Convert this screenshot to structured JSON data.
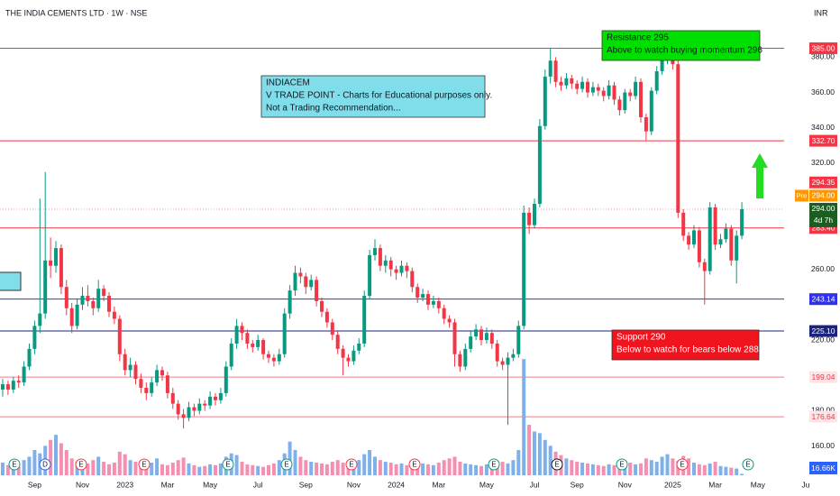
{
  "header": {
    "title": "THE INDIA CEMENTS LTD · 1W · NSE",
    "currency": "INR"
  },
  "chart_data": {
    "type": "candlestick",
    "categories": [
      null,
      null,
      null,
      null,
      null,
      null,
      "Sep",
      null,
      null,
      null,
      null,
      null,
      null,
      null,
      null,
      "Nov",
      null,
      null,
      null,
      null,
      null,
      null,
      null,
      "2023",
      null,
      null,
      null,
      null,
      null,
      null,
      null,
      "Mar",
      null,
      null,
      null,
      null,
      null,
      null,
      null,
      "May",
      null,
      null,
      null,
      null,
      null,
      null,
      null,
      null,
      "Jul",
      null,
      null,
      null,
      null,
      null,
      null,
      null,
      null,
      "Sep",
      null,
      null,
      null,
      null,
      null,
      null,
      null,
      null,
      "Nov",
      null,
      null,
      null,
      null,
      null,
      null,
      null,
      "2024",
      null,
      null,
      null,
      null,
      null,
      null,
      null,
      "Mar",
      null,
      null,
      null,
      null,
      null,
      null,
      null,
      null,
      "May",
      null,
      null,
      null,
      null,
      null,
      null,
      null,
      null,
      "Jul",
      null,
      null,
      null,
      null,
      null,
      null,
      null,
      "Sep",
      null,
      null,
      null,
      null,
      null,
      null,
      null,
      null,
      "Nov",
      null,
      null,
      null,
      null,
      null,
      null,
      null,
      null,
      "2025",
      null,
      null,
      null,
      null,
      null,
      null,
      null,
      "Mar",
      null,
      null,
      null,
      null,
      null,
      null,
      null,
      "May",
      null,
      null,
      null,
      null,
      null,
      null,
      null,
      null,
      "Ju"
    ],
    "ohlc": [
      [
        192,
        198,
        188,
        195
      ],
      [
        195,
        197,
        189,
        192
      ],
      [
        192,
        199,
        190,
        197
      ],
      [
        197,
        200,
        193,
        196
      ],
      [
        196,
        208,
        194,
        205
      ],
      [
        205,
        218,
        203,
        215
      ],
      [
        215,
        231,
        212,
        228
      ],
      [
        228,
        300,
        224,
        235
      ],
      [
        235,
        315,
        232,
        265
      ],
      [
        265,
        278,
        255,
        262
      ],
      [
        262,
        276,
        258,
        272
      ],
      [
        272,
        274,
        246,
        250
      ],
      [
        250,
        254,
        234,
        238
      ],
      [
        238,
        241,
        224,
        228
      ],
      [
        228,
        243,
        226,
        240
      ],
      [
        240,
        250,
        237,
        245
      ],
      [
        245,
        251,
        239,
        242
      ],
      [
        242,
        244,
        234,
        238
      ],
      [
        238,
        254,
        236,
        249
      ],
      [
        249,
        251,
        242,
        245
      ],
      [
        245,
        247,
        233,
        236
      ],
      [
        236,
        239,
        229,
        232
      ],
      [
        232,
        234,
        208,
        212
      ],
      [
        212,
        215,
        200,
        203
      ],
      [
        203,
        210,
        199,
        206
      ],
      [
        206,
        208,
        195,
        198
      ],
      [
        198,
        201,
        190,
        193
      ],
      [
        193,
        196,
        186,
        190
      ],
      [
        190,
        199,
        188,
        196
      ],
      [
        196,
        206,
        194,
        203
      ],
      [
        203,
        205,
        197,
        200
      ],
      [
        200,
        202,
        187,
        190
      ],
      [
        190,
        193,
        181,
        184
      ],
      [
        184,
        186,
        175,
        178
      ],
      [
        178,
        181,
        170,
        176
      ],
      [
        176,
        185,
        174,
        182
      ],
      [
        182,
        184,
        177,
        180
      ],
      [
        180,
        187,
        178,
        184
      ],
      [
        184,
        186,
        180,
        183
      ],
      [
        183,
        191,
        181,
        188
      ],
      [
        188,
        190,
        183,
        186
      ],
      [
        186,
        193,
        184,
        190
      ],
      [
        190,
        208,
        188,
        205
      ],
      [
        205,
        221,
        203,
        218
      ],
      [
        218,
        232,
        215,
        228
      ],
      [
        228,
        230,
        220,
        224
      ],
      [
        224,
        226,
        215,
        218
      ],
      [
        218,
        220,
        213,
        216
      ],
      [
        216,
        223,
        214,
        220
      ],
      [
        220,
        221,
        209,
        212
      ],
      [
        212,
        214,
        207,
        210
      ],
      [
        210,
        212,
        205,
        208
      ],
      [
        208,
        215,
        206,
        212
      ],
      [
        212,
        238,
        210,
        235
      ],
      [
        235,
        251,
        232,
        248
      ],
      [
        248,
        262,
        245,
        258
      ],
      [
        258,
        261,
        252,
        256
      ],
      [
        256,
        258,
        246,
        250
      ],
      [
        250,
        257,
        248,
        254
      ],
      [
        254,
        256,
        239,
        242
      ],
      [
        242,
        244,
        233,
        236
      ],
      [
        236,
        238,
        227,
        230
      ],
      [
        230,
        232,
        220,
        223
      ],
      [
        223,
        225,
        212,
        215
      ],
      [
        215,
        217,
        200,
        210
      ],
      [
        210,
        212,
        205,
        208
      ],
      [
        208,
        217,
        206,
        214
      ],
      [
        214,
        221,
        212,
        218
      ],
      [
        218,
        248,
        216,
        245
      ],
      [
        245,
        271,
        243,
        268
      ],
      [
        268,
        277,
        265,
        272
      ],
      [
        272,
        274,
        259,
        262
      ],
      [
        262,
        268,
        258,
        265
      ],
      [
        265,
        267,
        256,
        260
      ],
      [
        260,
        262,
        254,
        258
      ],
      [
        258,
        265,
        256,
        262
      ],
      [
        262,
        264,
        255,
        259
      ],
      [
        259,
        261,
        247,
        250
      ],
      [
        250,
        252,
        241,
        244
      ],
      [
        244,
        249,
        242,
        246
      ],
      [
        246,
        248,
        237,
        240
      ],
      [
        240,
        245,
        238,
        242
      ],
      [
        242,
        244,
        235,
        238
      ],
      [
        238,
        240,
        229,
        232
      ],
      [
        232,
        234,
        227,
        230
      ],
      [
        230,
        232,
        205,
        212
      ],
      [
        212,
        214,
        202,
        205
      ],
      [
        205,
        218,
        203,
        215
      ],
      [
        215,
        225,
        213,
        222
      ],
      [
        222,
        229,
        220,
        226
      ],
      [
        226,
        228,
        217,
        220
      ],
      [
        220,
        227,
        218,
        224
      ],
      [
        224,
        226,
        215,
        218
      ],
      [
        218,
        220,
        205,
        208
      ],
      [
        208,
        210,
        203,
        206
      ],
      [
        206,
        213,
        172,
        210
      ],
      [
        210,
        215,
        208,
        212
      ],
      [
        212,
        231,
        210,
        228
      ],
      [
        228,
        296,
        226,
        292
      ],
      [
        292,
        295,
        280,
        285
      ],
      [
        285,
        300,
        283,
        297
      ],
      [
        297,
        345,
        295,
        341
      ],
      [
        341,
        373,
        339,
        369
      ],
      [
        369,
        385,
        365,
        378
      ],
      [
        378,
        380,
        363,
        366
      ],
      [
        366,
        369,
        361,
        364
      ],
      [
        364,
        371,
        362,
        368
      ],
      [
        368,
        370,
        362,
        365
      ],
      [
        365,
        367,
        359,
        362
      ],
      [
        362,
        369,
        360,
        366
      ],
      [
        366,
        368,
        357,
        360
      ],
      [
        360,
        366,
        358,
        363
      ],
      [
        363,
        365,
        358,
        361
      ],
      [
        361,
        363,
        355,
        358
      ],
      [
        358,
        367,
        356,
        364
      ],
      [
        364,
        366,
        353,
        356
      ],
      [
        356,
        358,
        347,
        350
      ],
      [
        350,
        362,
        348,
        360
      ],
      [
        360,
        362,
        355,
        358
      ],
      [
        358,
        369,
        356,
        366
      ],
      [
        366,
        368,
        343,
        346
      ],
      [
        346,
        348,
        333,
        338
      ],
      [
        338,
        363,
        336,
        361
      ],
      [
        361,
        375,
        359,
        372
      ],
      [
        372,
        382,
        370,
        379
      ],
      [
        379,
        386,
        376,
        383
      ],
      [
        383,
        385,
        373,
        376
      ],
      [
        376,
        378,
        289,
        292
      ],
      [
        292,
        294,
        276,
        279
      ],
      [
        279,
        281,
        271,
        274
      ],
      [
        274,
        285,
        272,
        282
      ],
      [
        282,
        284,
        261,
        264
      ],
      [
        264,
        266,
        240,
        259
      ],
      [
        259,
        298,
        257,
        295
      ],
      [
        295,
        297,
        271,
        274
      ],
      [
        274,
        280,
        272,
        277
      ],
      [
        277,
        286,
        275,
        283
      ],
      [
        283,
        285,
        262,
        265
      ],
      [
        265,
        282,
        252,
        279
      ],
      [
        279,
        298,
        277,
        294
      ]
    ],
    "up_color": "#089981",
    "down_color": "#f23645",
    "ylim": [
      142,
      397
    ],
    "yticks": [
      {
        "value": 160,
        "label": "160.00"
      },
      {
        "value": 180,
        "label": "180.00"
      },
      {
        "value": 220,
        "label": "220.00"
      },
      {
        "value": 260,
        "label": "260.00"
      },
      {
        "value": 320,
        "label": "320.00"
      },
      {
        "value": 340,
        "label": "340.00"
      },
      {
        "value": 360,
        "label": "360.00"
      },
      {
        "value": 380,
        "label": "380.00"
      }
    ],
    "volume": {
      "values": [
        150,
        120,
        140,
        100,
        180,
        220,
        300,
        260,
        350,
        420,
        480,
        380,
        300,
        200,
        160,
        120,
        140,
        180,
        220,
        160,
        130,
        150,
        280,
        250,
        180,
        160,
        140,
        120,
        150,
        200,
        130,
        120,
        150,
        180,
        210,
        140,
        120,
        100,
        110,
        130,
        120,
        140,
        220,
        260,
        240,
        160,
        130,
        120,
        110,
        100,
        120,
        140,
        180,
        260,
        400,
        300,
        220,
        180,
        160,
        150,
        140,
        130,
        160,
        180,
        150,
        120,
        140,
        180,
        250,
        300,
        220,
        180,
        160,
        150,
        130,
        140,
        120,
        150,
        160,
        140,
        130,
        120,
        150,
        180,
        200,
        220,
        160,
        140,
        130,
        120,
        110,
        130,
        150,
        170,
        160,
        140,
        180,
        300,
        1380,
        600,
        520,
        500,
        420,
        350,
        280,
        240,
        200,
        180,
        160,
        150,
        140,
        130,
        120,
        110,
        130,
        120,
        140,
        160,
        150,
        130,
        140,
        200,
        180,
        160,
        220,
        250,
        200,
        170,
        230,
        200,
        150,
        130,
        120,
        140,
        160,
        110,
        100,
        90,
        80,
        16.66
      ],
      "value_labels": {
        "139": "16.66K"
      },
      "ylim": [
        0,
        1500
      ],
      "up_color": "#7fb0ea",
      "down_color": "#f48fb1",
      "label_color": "#2962ff"
    },
    "levels": [
      {
        "value": 385,
        "label": "385.00",
        "color": "#f23645"
      },
      {
        "value": 332.7,
        "label": "332.70",
        "color": "#f23645"
      },
      {
        "value": 283.4,
        "label": "283.40",
        "color": "#f23645"
      },
      {
        "value": 243.14,
        "label": "243.14",
        "color": "#3030f0"
      },
      {
        "value": 225.1,
        "label": "225.10",
        "color": "#1a237e"
      },
      {
        "value": 199.04,
        "label": "199.04",
        "color": "#f47c86"
      },
      {
        "value": 176.64,
        "label": "176.64",
        "color": "#f47c86"
      }
    ],
    "price_tags": [
      {
        "value": 294.35,
        "label": "294.35",
        "color": "#f23645"
      },
      {
        "value": 294,
        "label": "294.00",
        "tag": "Pre",
        "color": "#ff9800"
      },
      {
        "value": 294,
        "label": "294.00",
        "sub": "4d 7h",
        "color": "#1b5e20"
      }
    ],
    "annotations": [
      {
        "lines": [
          "INDIACEM",
          "V TRADE POINT - Charts for Educational purposes only.",
          "Not a Trading Recommendation..."
        ],
        "color": "#80deea"
      },
      {
        "lines": [
          "Resistance  295",
          "Above to watch buying momentum 296"
        ],
        "color": "#00e000"
      },
      {
        "lines": [
          "Support 290",
          "Below to watch for bears below 288"
        ],
        "color": "#f0141e"
      }
    ],
    "events": [
      "E",
      "D",
      "E",
      "E",
      "E",
      "E",
      "E",
      "E",
      "E",
      "E",
      "E",
      "E",
      "E"
    ]
  }
}
